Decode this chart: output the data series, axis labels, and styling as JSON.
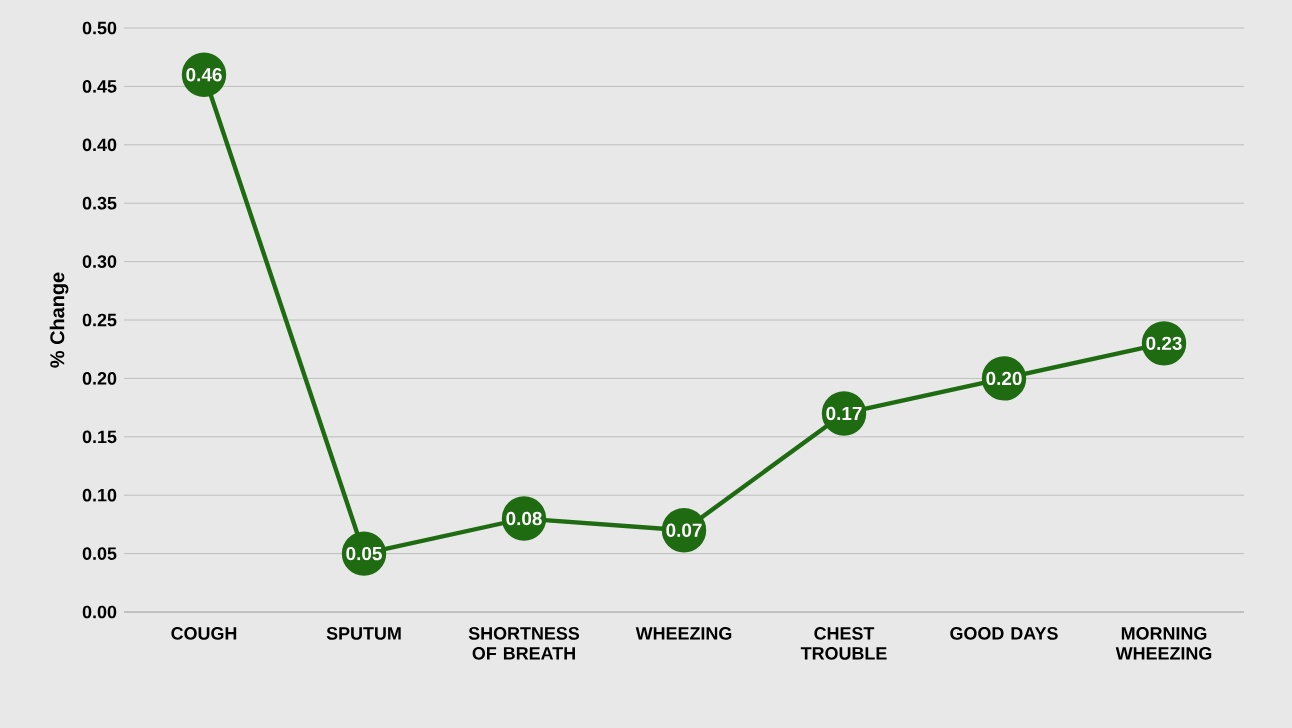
{
  "chart_data": {
    "type": "line",
    "ylabel": "% Change",
    "categories": [
      "COUGH",
      "SPUTUM",
      "SHORTNESS OF BREATH",
      "WHEEZING",
      "CHEST TROUBLE",
      "GOOD DAYS",
      "MORNING WHEEZING"
    ],
    "values": [
      0.46,
      0.05,
      0.08,
      0.07,
      0.17,
      0.2,
      0.23
    ],
    "value_labels": [
      "0.46",
      "0.05",
      "0.08",
      "0.07",
      "0.17",
      "0.20",
      "0.23"
    ],
    "color": "#1e6b12",
    "marker": "circle",
    "line_style": "solid",
    "grid": "y",
    "ylim": [
      0,
      0.5
    ],
    "yticks": [
      {
        "value": 0,
        "label": "0.00"
      },
      {
        "value": 0.05,
        "label": "0.05"
      },
      {
        "value": 0.1,
        "label": "0.10"
      },
      {
        "value": 0.15,
        "label": "0.15"
      },
      {
        "value": 0.2,
        "label": "0.20"
      },
      {
        "value": 0.25,
        "label": "0.25"
      },
      {
        "value": 0.3,
        "label": "0.30"
      },
      {
        "value": 0.35,
        "label": "0.35"
      },
      {
        "value": 0.4,
        "label": "0.40"
      },
      {
        "value": 0.45,
        "label": "0.45"
      },
      {
        "value": 0.5,
        "label": "0.50"
      }
    ]
  }
}
